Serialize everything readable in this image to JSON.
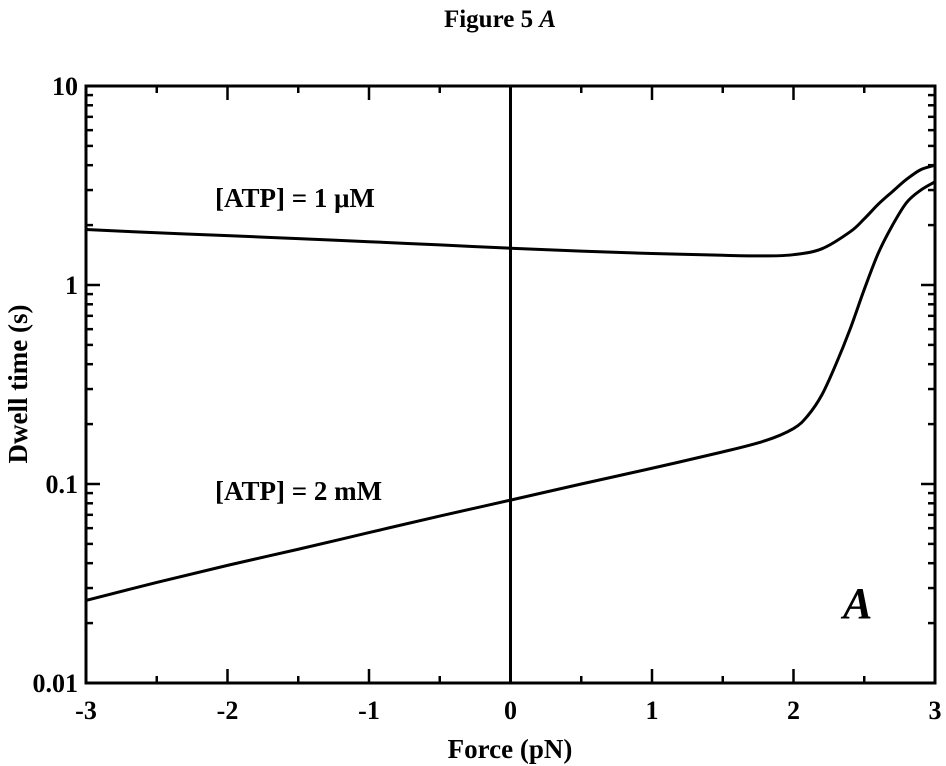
{
  "figure": {
    "title_prefix": "Figure 5",
    "title_letter": "A",
    "panel_letter": "A"
  },
  "chart_data": {
    "type": "line",
    "title": "Figure 5 A",
    "xlabel": "Force (pN)",
    "ylabel": "Dwell time (s)",
    "xlim": [
      -3,
      3
    ],
    "ylim": [
      0.01,
      10
    ],
    "yscale": "log",
    "x_ticks": [
      -3,
      -2,
      -1,
      0,
      1,
      2,
      3
    ],
    "x_tick_labels": [
      "-3",
      "-2",
      "-1",
      "0",
      "1",
      "2",
      "3"
    ],
    "y_ticks": [
      0.01,
      0.1,
      1,
      10
    ],
    "y_tick_labels": [
      "0.01",
      "0.1",
      "1",
      "10"
    ],
    "grid": false,
    "vertical_reference_line_x": 0,
    "series": [
      {
        "name": "[ATP] = 1 μM",
        "x": [
          -3.0,
          -2.5,
          -2.0,
          -1.5,
          -1.0,
          -0.5,
          0.0,
          0.5,
          1.0,
          1.5,
          1.8,
          2.0,
          2.2,
          2.4,
          2.5,
          2.6,
          2.7,
          2.8,
          2.9,
          3.0
        ],
        "y": [
          1.9,
          1.83,
          1.77,
          1.71,
          1.65,
          1.59,
          1.53,
          1.48,
          1.44,
          1.41,
          1.4,
          1.42,
          1.52,
          1.85,
          2.15,
          2.55,
          2.95,
          3.4,
          3.8,
          4.0
        ]
      },
      {
        "name": "[ATP] = 2 mM",
        "x": [
          -3.0,
          -2.5,
          -2.0,
          -1.5,
          -1.0,
          -0.5,
          0.0,
          0.5,
          1.0,
          1.5,
          1.8,
          2.0,
          2.1,
          2.2,
          2.3,
          2.4,
          2.5,
          2.6,
          2.7,
          2.8,
          2.9,
          3.0
        ],
        "y": [
          0.026,
          0.032,
          0.039,
          0.047,
          0.057,
          0.069,
          0.083,
          0.1,
          0.12,
          0.145,
          0.165,
          0.19,
          0.22,
          0.28,
          0.4,
          0.6,
          0.95,
          1.45,
          2.0,
          2.6,
          3.0,
          3.3
        ]
      }
    ]
  }
}
